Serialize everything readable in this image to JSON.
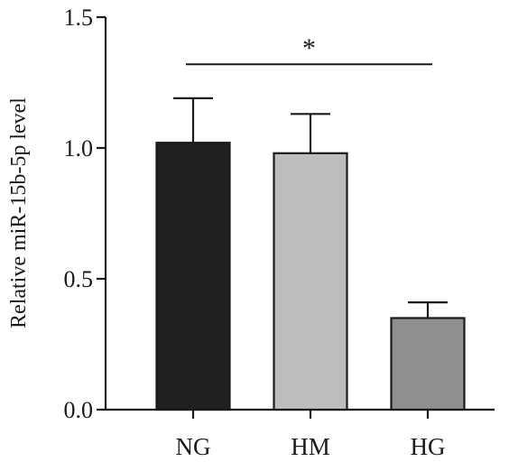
{
  "chart_data": {
    "type": "bar",
    "title": "",
    "xlabel": "",
    "ylabel": "Relative miR-15b-5p level",
    "ylim": [
      0,
      1.5
    ],
    "yticks": [
      "0.0",
      "0.5",
      "1.0",
      "1.5"
    ],
    "categories": [
      "NG",
      "HM",
      "HG"
    ],
    "values": [
      1.02,
      0.98,
      0.35
    ],
    "errors": [
      0.17,
      0.15,
      0.06
    ],
    "bar_colors": [
      "#202020",
      "#bdbdbf",
      "#8e8f91"
    ],
    "grid": false,
    "legend": "none",
    "annotations": [
      {
        "text": "*",
        "from": "NG",
        "to": "HG",
        "y": 1.32
      }
    ]
  }
}
